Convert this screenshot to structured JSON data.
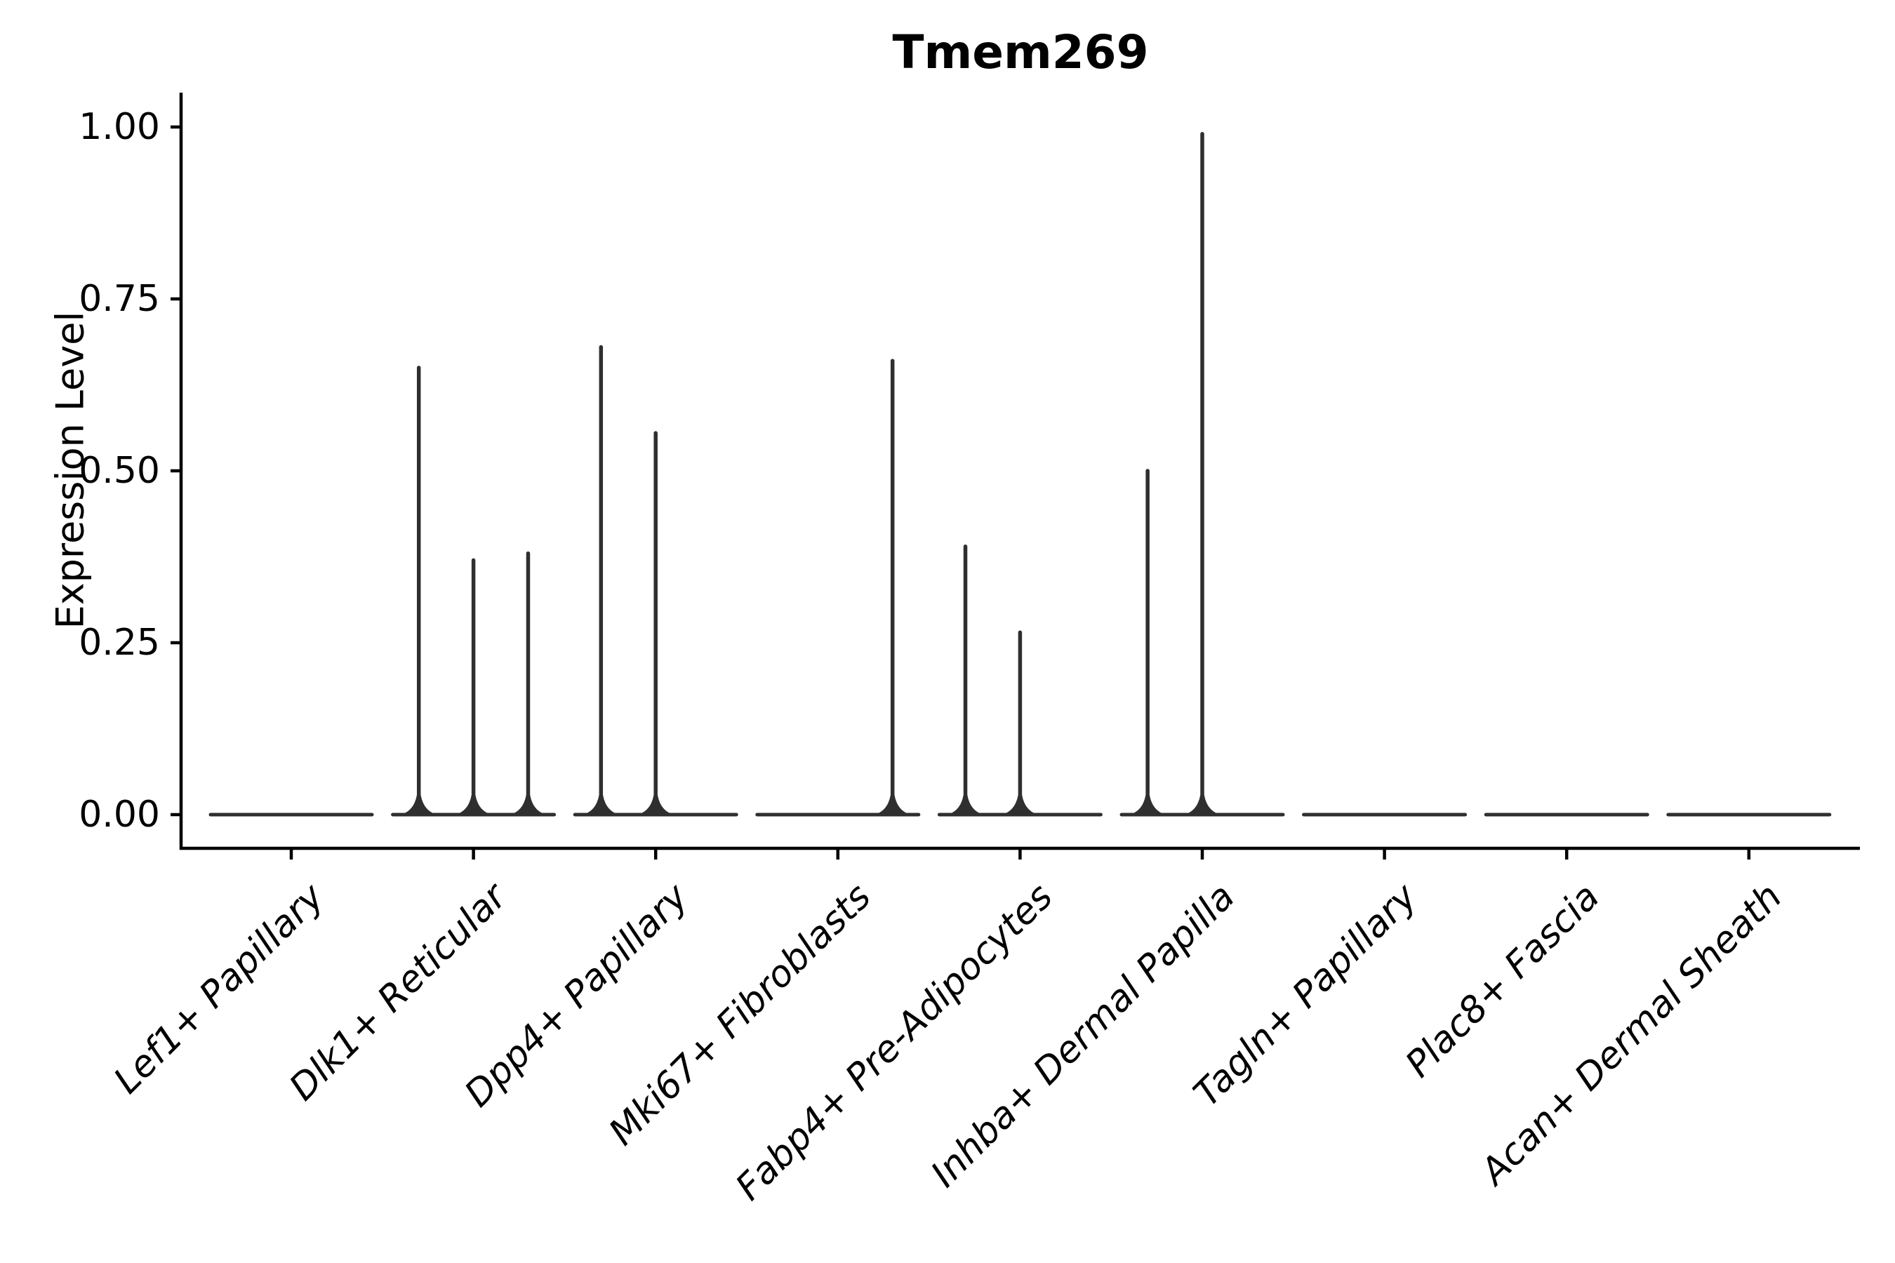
{
  "figure": {
    "background": "#ffffff",
    "violin_color": "#2f2f2f",
    "axis_color": "#000000",
    "text_color": "#000000"
  },
  "chart_data": {
    "type": "violin",
    "title": "Tmem269",
    "xlabel": "",
    "ylabel": "Expression Level",
    "ylim": [
      0,
      1.05
    ],
    "grid": false,
    "legend_position": "none",
    "ytick_values": [
      0,
      0.25,
      0.5,
      0.75,
      1.0
    ],
    "yticks": [
      "0.00",
      "0.25",
      "0.50",
      "0.75",
      "1.00"
    ],
    "categories": [
      "Lef1+ Papillary",
      "Dlk1+ Reticular",
      "Dpp4+ Papillary",
      "Mki67+ Fibroblasts",
      "Fabp4+ Pre-Adipocytes",
      "Inhba+ Dermal Papilla",
      "Tagln+ Papillary",
      "Plac8+ Fascia",
      "Acan+ Dermal Sheath"
    ],
    "series": [
      {
        "category": "Lef1+ Papillary",
        "baseline": 0,
        "spikes": []
      },
      {
        "category": "Dlk1+ Reticular",
        "baseline": 0,
        "spikes": [
          {
            "offset": -0.3,
            "value": 0.65
          },
          {
            "offset": 0,
            "value": 0.37
          },
          {
            "offset": 0.3,
            "value": 0.38
          }
        ]
      },
      {
        "category": "Dpp4+ Papillary",
        "baseline": 0,
        "spikes": [
          {
            "offset": -0.3,
            "value": 0.68
          },
          {
            "offset": 0,
            "value": 0.555
          }
        ]
      },
      {
        "category": "Mki67+ Fibroblasts",
        "baseline": 0,
        "spikes": [
          {
            "offset": 0.3,
            "value": 0.66
          }
        ]
      },
      {
        "category": "Fabp4+ Pre-Adipocytes",
        "baseline": 0,
        "spikes": [
          {
            "offset": -0.3,
            "value": 0.39
          },
          {
            "offset": 0,
            "value": 0.265
          }
        ]
      },
      {
        "category": "Inhba+ Dermal Papilla",
        "baseline": 0,
        "spikes": [
          {
            "offset": -0.3,
            "value": 0.5
          },
          {
            "offset": 0,
            "value": 0.99
          }
        ]
      },
      {
        "category": "Tagln+ Papillary",
        "baseline": 0,
        "spikes": []
      },
      {
        "category": "Plac8+ Fascia",
        "baseline": 0,
        "spikes": []
      },
      {
        "category": "Acan+ Dermal Sheath",
        "baseline": 0,
        "spikes": []
      }
    ],
    "notes": "Violin plot with collapsed (near-zero-width) violins: each cluster shows a flat density line at expression 0 plus narrow vertical density spikes where cells express the gene."
  }
}
